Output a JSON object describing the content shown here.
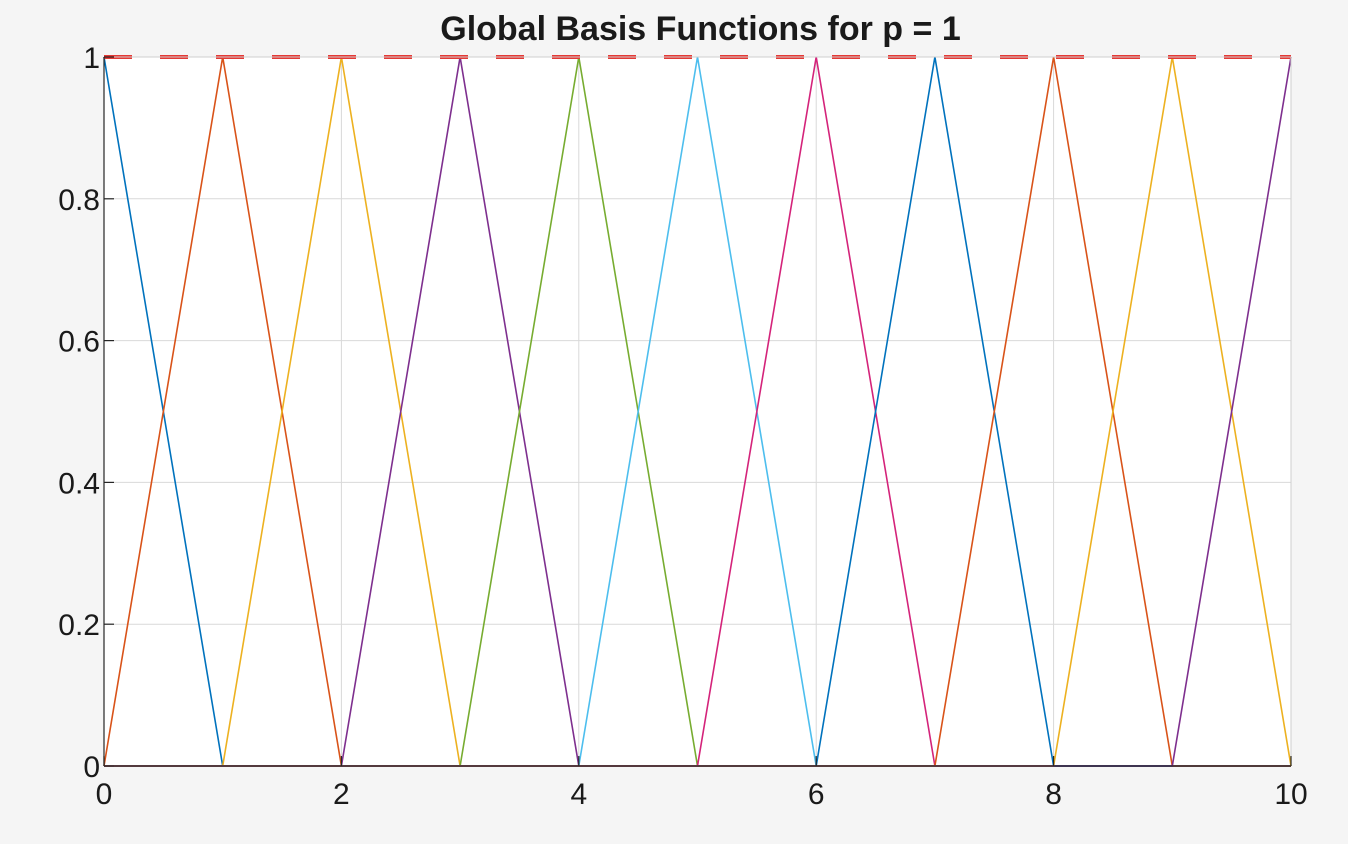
{
  "chart_data": {
    "type": "line",
    "title": "Global Basis Functions for p = 1",
    "xlabel": "",
    "ylabel": "",
    "xlim": [
      0,
      10
    ],
    "ylim": [
      0,
      1
    ],
    "x_ticks": [
      0,
      2,
      4,
      6,
      8,
      10
    ],
    "y_ticks": [
      0,
      0.2,
      0.4,
      0.6,
      0.8,
      1
    ],
    "x_tick_labels": [
      "0",
      "2",
      "4",
      "6",
      "8",
      "10"
    ],
    "y_tick_labels": [
      "0",
      "0.2",
      "0.4",
      "0.6",
      "0.8",
      "1"
    ],
    "grid": true,
    "legend": "none",
    "series": [
      {
        "color": "#0072BD",
        "x": [
          0,
          1,
          10
        ],
        "y": [
          1,
          0,
          0
        ]
      },
      {
        "color": "#D95319",
        "x": [
          0,
          1,
          2,
          10
        ],
        "y": [
          0,
          1,
          0,
          0
        ]
      },
      {
        "color": "#EDB120",
        "x": [
          0,
          1,
          2,
          3,
          10
        ],
        "y": [
          0,
          0,
          1,
          0,
          0
        ]
      },
      {
        "color": "#7E2F8E",
        "x": [
          0,
          2,
          3,
          4,
          10
        ],
        "y": [
          0,
          0,
          1,
          0,
          0
        ]
      },
      {
        "color": "#77AC30",
        "x": [
          0,
          3,
          4,
          5,
          10
        ],
        "y": [
          0,
          0,
          1,
          0,
          0
        ]
      },
      {
        "color": "#4DBEEE",
        "x": [
          0,
          4,
          5,
          6,
          10
        ],
        "y": [
          0,
          0,
          1,
          0,
          0
        ]
      },
      {
        "color": "#D4237A",
        "x": [
          0,
          5,
          6,
          7,
          10
        ],
        "y": [
          0,
          0,
          1,
          0,
          0
        ]
      },
      {
        "color": "#0072BD",
        "x": [
          0,
          6,
          7,
          8,
          10
        ],
        "y": [
          0,
          0,
          1,
          0,
          0
        ]
      },
      {
        "color": "#D95319",
        "x": [
          0,
          7,
          8,
          9,
          10
        ],
        "y": [
          0,
          0,
          1,
          0,
          0
        ]
      },
      {
        "color": "#EDB120",
        "x": [
          0,
          8,
          9,
          10
        ],
        "y": [
          0,
          0,
          1,
          0
        ]
      },
      {
        "color": "#7E2F8E",
        "x": [
          0,
          9,
          10
        ],
        "y": [
          0,
          0,
          1
        ]
      },
      {
        "color": "#E53935",
        "dashed": true,
        "x": [
          0,
          10
        ],
        "y": [
          1,
          1
        ]
      }
    ]
  }
}
